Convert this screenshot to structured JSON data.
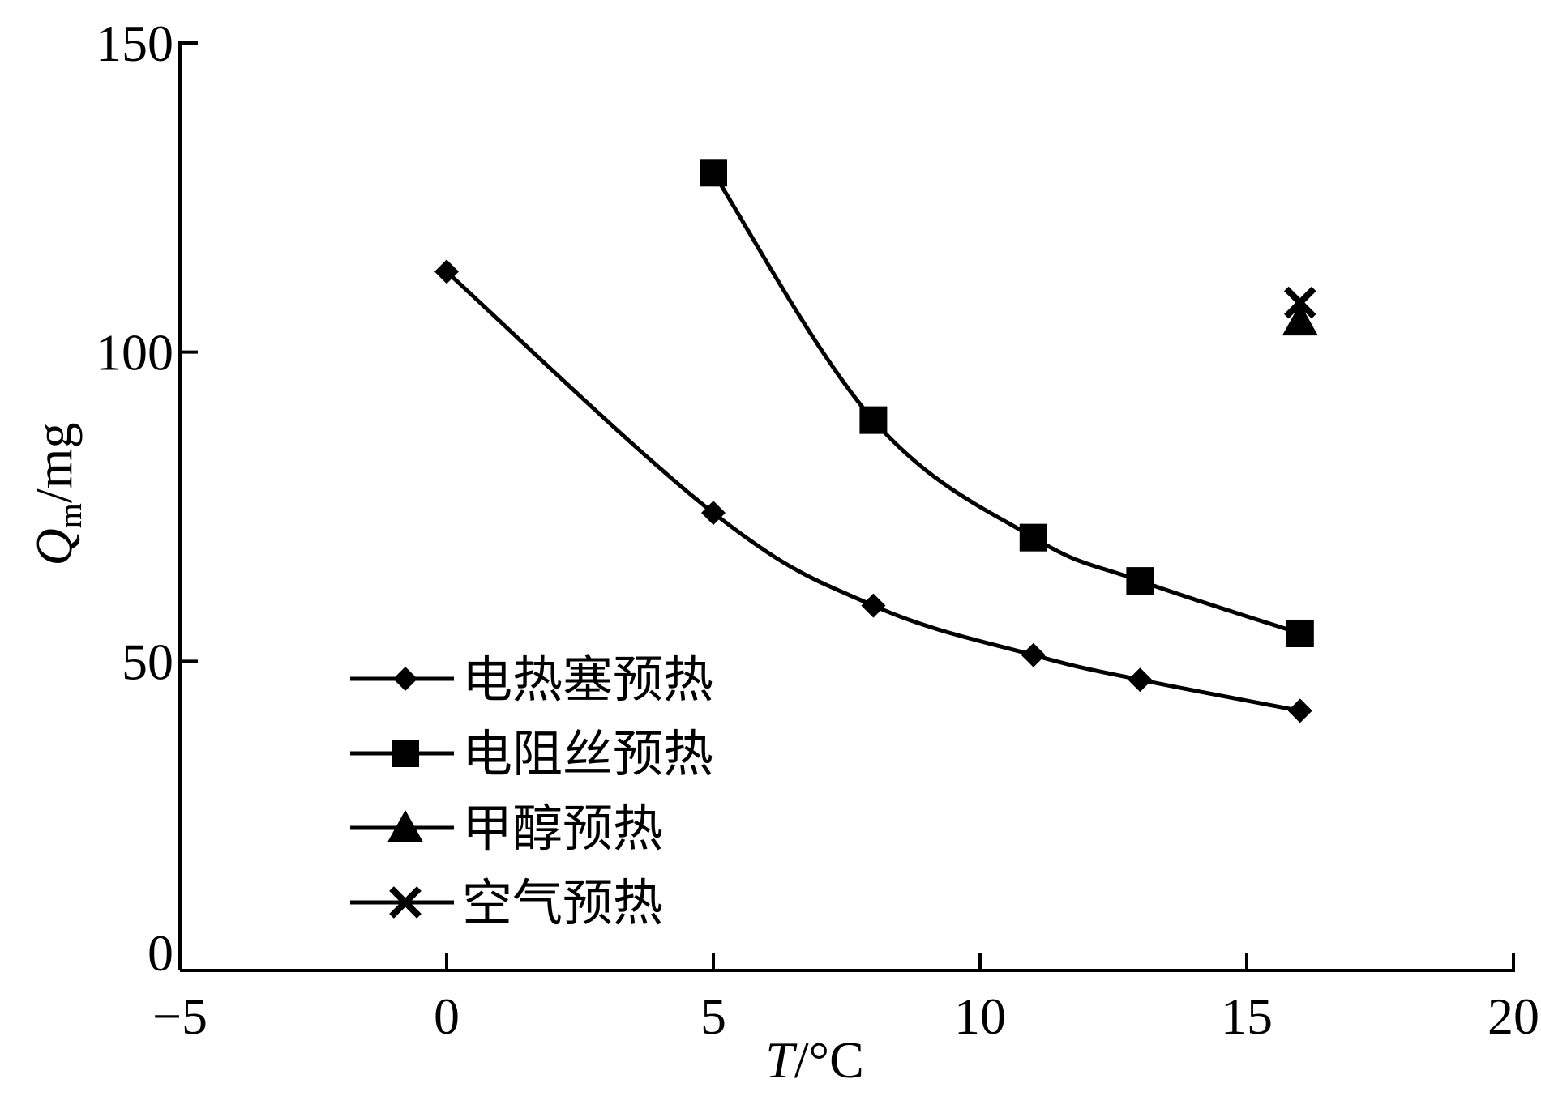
{
  "chart_data": {
    "type": "line",
    "xlabel_var": "T",
    "xlabel_unit": "/°C",
    "ylabel_var": "Q",
    "ylabel_sub": "m",
    "ylabel_unit": "/mg",
    "xlim": [
      -5,
      20
    ],
    "ylim": [
      0,
      150
    ],
    "xticks": [
      -5,
      0,
      5,
      10,
      15,
      20
    ],
    "yticks": [
      0,
      50,
      100,
      150
    ],
    "xtick_labels": [
      "−5",
      "0",
      "5",
      "10",
      "15",
      "20"
    ],
    "ytick_labels": [
      "0",
      "50",
      "100",
      "150"
    ],
    "grid": false,
    "legend_position": "bottom-left",
    "series": [
      {
        "name": "电热塞预热",
        "marker": "diamond",
        "x": [
          0,
          5,
          8,
          11,
          13,
          16
        ],
        "y": [
          113,
          74,
          59,
          51,
          47,
          42
        ]
      },
      {
        "name": "电阻丝预热",
        "marker": "square",
        "x": [
          5,
          8,
          11,
          13,
          16
        ],
        "y": [
          129,
          89,
          70,
          63,
          54.5
        ]
      },
      {
        "name": "甲醇预热",
        "marker": "triangle",
        "x": [
          16
        ],
        "y": [
          105
        ]
      },
      {
        "name": "空气预热",
        "marker": "cross",
        "x": [
          16
        ],
        "y": [
          108
        ]
      }
    ]
  }
}
